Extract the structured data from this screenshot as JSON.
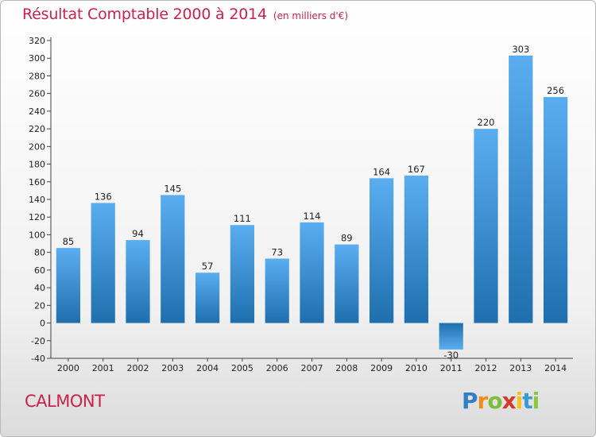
{
  "title": "Résultat Comptable 2000 à 2014",
  "subtitle": "(en milliers d'€)",
  "location": "CALMONT",
  "brand": "Proxiti",
  "colors": {
    "title": "#c8234a",
    "bar_light": "#5aaef0",
    "bar_dark": "#1f6fae"
  },
  "chart_data": {
    "type": "bar",
    "title": "Résultat Comptable 2000 à 2014",
    "subtitle": "(en milliers d'€)",
    "xlabel": "",
    "ylabel": "",
    "categories": [
      "2000",
      "2001",
      "2002",
      "2003",
      "2004",
      "2005",
      "2006",
      "2007",
      "2008",
      "2009",
      "2010",
      "2011",
      "2012",
      "2013",
      "2014"
    ],
    "values": [
      85,
      136,
      94,
      145,
      57,
      111,
      73,
      114,
      89,
      164,
      167,
      -30,
      220,
      303,
      256
    ],
    "ylim": [
      -40,
      320
    ],
    "ytick_step": 20,
    "grid": false,
    "data_labels": true
  }
}
